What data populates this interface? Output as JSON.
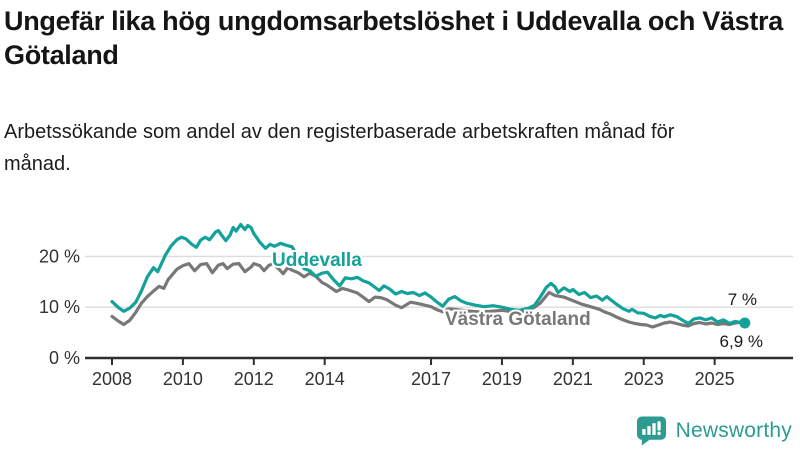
{
  "header": {
    "title": "Ungefär lika hög ungdomsarbetslöshet i Uddevalla och Västra Götaland",
    "subtitle": "Arbetssökande som andel av den registerbaserade arbetskraften månad för månad."
  },
  "footer": {
    "brand": "Newsworthy",
    "brand_color": "#2d9b91"
  },
  "chart_data": {
    "type": "line",
    "title": "Ungefär lika hög ungdomsarbetslöshet i Uddevalla och Västra Götaland",
    "subtitle": "Arbetssökande som andel av den registerbaserade arbetskraften månad för månad.",
    "unit": "%",
    "grid": true,
    "legend_position": "inline-labels",
    "colors": {
      "axis": "#2e2e2e",
      "gridline": "#dcdcdc",
      "tick_text": "#333333",
      "end_label_text": "#1a1a1a"
    },
    "x_axis": {
      "range": [
        2007.7,
        2026.2
      ],
      "ticks": [
        2008,
        2010,
        2012,
        2014,
        2017,
        2019,
        2021,
        2023,
        2025
      ]
    },
    "y_axis": {
      "range": [
        0,
        28
      ],
      "ticks": [
        {
          "value": 0,
          "label": "0 %"
        },
        {
          "value": 10,
          "label": "10 %"
        },
        {
          "value": 20,
          "label": "20 %"
        }
      ]
    },
    "series": [
      {
        "name": "Uddevalla",
        "color": "#12a29a",
        "end_label": "6,9 %",
        "end_value": 6.9,
        "points": [
          [
            2008.0,
            11.1
          ],
          [
            2008.17,
            10.0
          ],
          [
            2008.33,
            9.2
          ],
          [
            2008.5,
            9.8
          ],
          [
            2008.67,
            11.0
          ],
          [
            2008.83,
            13.2
          ],
          [
            2009.0,
            16.0
          ],
          [
            2009.17,
            17.8
          ],
          [
            2009.29,
            17.0
          ],
          [
            2009.5,
            20.2
          ],
          [
            2009.67,
            22.1
          ],
          [
            2009.83,
            23.3
          ],
          [
            2009.96,
            23.8
          ],
          [
            2010.08,
            23.5
          ],
          [
            2010.25,
            22.4
          ],
          [
            2010.38,
            21.8
          ],
          [
            2010.5,
            23.2
          ],
          [
            2010.63,
            23.8
          ],
          [
            2010.75,
            23.3
          ],
          [
            2010.92,
            24.8
          ],
          [
            2011.0,
            25.1
          ],
          [
            2011.08,
            24.3
          ],
          [
            2011.21,
            23.1
          ],
          [
            2011.33,
            24.2
          ],
          [
            2011.42,
            25.7
          ],
          [
            2011.5,
            25.0
          ],
          [
            2011.63,
            26.3
          ],
          [
            2011.75,
            25.3
          ],
          [
            2011.83,
            26.1
          ],
          [
            2011.92,
            25.7
          ],
          [
            2012.0,
            24.5
          ],
          [
            2012.17,
            22.8
          ],
          [
            2012.33,
            21.6
          ],
          [
            2012.46,
            22.4
          ],
          [
            2012.58,
            22.0
          ],
          [
            2012.75,
            22.6
          ],
          [
            2012.92,
            22.2
          ],
          [
            2013.08,
            21.9
          ],
          [
            2013.25,
            19.8
          ],
          [
            2013.42,
            17.6
          ],
          [
            2013.58,
            17.2
          ],
          [
            2013.75,
            16.1
          ],
          [
            2013.92,
            16.7
          ],
          [
            2014.08,
            16.9
          ],
          [
            2014.25,
            15.4
          ],
          [
            2014.42,
            14.2
          ],
          [
            2014.58,
            15.8
          ],
          [
            2014.75,
            15.6
          ],
          [
            2014.92,
            15.9
          ],
          [
            2015.08,
            15.2
          ],
          [
            2015.25,
            14.8
          ],
          [
            2015.42,
            13.9
          ],
          [
            2015.54,
            13.3
          ],
          [
            2015.67,
            14.2
          ],
          [
            2015.83,
            13.6
          ],
          [
            2016.0,
            12.6
          ],
          [
            2016.17,
            13.1
          ],
          [
            2016.33,
            12.7
          ],
          [
            2016.5,
            12.9
          ],
          [
            2016.67,
            12.3
          ],
          [
            2016.83,
            12.8
          ],
          [
            2017.0,
            12.0
          ],
          [
            2017.17,
            11.0
          ],
          [
            2017.33,
            10.2
          ],
          [
            2017.5,
            11.6
          ],
          [
            2017.67,
            12.1
          ],
          [
            2017.83,
            11.3
          ],
          [
            2018.0,
            10.8
          ],
          [
            2018.25,
            10.4
          ],
          [
            2018.5,
            10.1
          ],
          [
            2018.75,
            10.3
          ],
          [
            2019.0,
            10.0
          ],
          [
            2019.25,
            9.6
          ],
          [
            2019.5,
            9.4
          ],
          [
            2019.75,
            9.8
          ],
          [
            2019.92,
            10.4
          ],
          [
            2020.08,
            12.0
          ],
          [
            2020.25,
            13.9
          ],
          [
            2020.38,
            14.7
          ],
          [
            2020.5,
            14.0
          ],
          [
            2020.58,
            12.9
          ],
          [
            2020.75,
            13.8
          ],
          [
            2020.92,
            13.1
          ],
          [
            2021.0,
            13.5
          ],
          [
            2021.17,
            12.5
          ],
          [
            2021.33,
            12.9
          ],
          [
            2021.5,
            11.9
          ],
          [
            2021.67,
            12.2
          ],
          [
            2021.83,
            11.4
          ],
          [
            2021.96,
            12.1
          ],
          [
            2022.08,
            11.4
          ],
          [
            2022.25,
            10.5
          ],
          [
            2022.42,
            9.7
          ],
          [
            2022.58,
            9.2
          ],
          [
            2022.67,
            9.6
          ],
          [
            2022.83,
            8.9
          ],
          [
            2023.0,
            8.8
          ],
          [
            2023.17,
            8.2
          ],
          [
            2023.33,
            7.9
          ],
          [
            2023.46,
            8.4
          ],
          [
            2023.58,
            8.1
          ],
          [
            2023.75,
            8.5
          ],
          [
            2023.92,
            8.2
          ],
          [
            2024.08,
            7.5
          ],
          [
            2024.25,
            6.8
          ],
          [
            2024.42,
            7.7
          ],
          [
            2024.58,
            7.9
          ],
          [
            2024.75,
            7.5
          ],
          [
            2024.92,
            7.9
          ],
          [
            2025.08,
            7.1
          ],
          [
            2025.25,
            7.5
          ],
          [
            2025.42,
            6.8
          ],
          [
            2025.58,
            7.2
          ],
          [
            2025.75,
            7.0
          ],
          [
            2025.85,
            6.9
          ]
        ]
      },
      {
        "name": "Västra Götaland",
        "color": "#787878",
        "end_label": "7 %",
        "end_value": 7.0,
        "points": [
          [
            2008.0,
            8.2
          ],
          [
            2008.17,
            7.3
          ],
          [
            2008.33,
            6.6
          ],
          [
            2008.5,
            7.4
          ],
          [
            2008.67,
            9.0
          ],
          [
            2008.83,
            10.8
          ],
          [
            2009.0,
            12.1
          ],
          [
            2009.17,
            13.2
          ],
          [
            2009.33,
            14.1
          ],
          [
            2009.46,
            13.7
          ],
          [
            2009.58,
            15.4
          ],
          [
            2009.83,
            17.5
          ],
          [
            2010.0,
            18.2
          ],
          [
            2010.17,
            18.6
          ],
          [
            2010.33,
            17.2
          ],
          [
            2010.5,
            18.4
          ],
          [
            2010.67,
            18.6
          ],
          [
            2010.83,
            16.8
          ],
          [
            2011.0,
            18.3
          ],
          [
            2011.13,
            18.6
          ],
          [
            2011.25,
            17.6
          ],
          [
            2011.42,
            18.5
          ],
          [
            2011.58,
            18.6
          ],
          [
            2011.75,
            17.0
          ],
          [
            2011.92,
            17.9
          ],
          [
            2012.0,
            18.6
          ],
          [
            2012.17,
            18.2
          ],
          [
            2012.29,
            17.2
          ],
          [
            2012.42,
            18.2
          ],
          [
            2012.54,
            18.6
          ],
          [
            2012.71,
            17.5
          ],
          [
            2012.83,
            16.6
          ],
          [
            2012.96,
            17.8
          ],
          [
            2013.08,
            17.3
          ],
          [
            2013.25,
            16.8
          ],
          [
            2013.42,
            16.0
          ],
          [
            2013.58,
            16.7
          ],
          [
            2013.75,
            16.1
          ],
          [
            2013.92,
            14.9
          ],
          [
            2014.08,
            14.3
          ],
          [
            2014.33,
            13.1
          ],
          [
            2014.5,
            13.7
          ],
          [
            2014.67,
            13.4
          ],
          [
            2014.92,
            12.8
          ],
          [
            2015.08,
            12.0
          ],
          [
            2015.25,
            11.1
          ],
          [
            2015.42,
            12.0
          ],
          [
            2015.58,
            11.9
          ],
          [
            2015.75,
            11.5
          ],
          [
            2016.0,
            10.4
          ],
          [
            2016.17,
            9.9
          ],
          [
            2016.42,
            11.0
          ],
          [
            2016.58,
            10.8
          ],
          [
            2016.83,
            10.4
          ],
          [
            2017.0,
            10.1
          ],
          [
            2017.17,
            9.5
          ],
          [
            2017.33,
            9.1
          ],
          [
            2017.5,
            9.7
          ],
          [
            2017.67,
            9.6
          ],
          [
            2018.0,
            9.3
          ],
          [
            2018.33,
            9.1
          ],
          [
            2018.67,
            9.2
          ],
          [
            2019.0,
            9.4
          ],
          [
            2019.33,
            9.1
          ],
          [
            2019.58,
            9.2
          ],
          [
            2019.83,
            9.6
          ],
          [
            2020.08,
            10.8
          ],
          [
            2020.33,
            12.9
          ],
          [
            2020.5,
            12.3
          ],
          [
            2020.75,
            12.0
          ],
          [
            2021.0,
            11.3
          ],
          [
            2021.25,
            10.6
          ],
          [
            2021.5,
            10.1
          ],
          [
            2021.75,
            9.6
          ],
          [
            2021.92,
            9.0
          ],
          [
            2022.08,
            8.6
          ],
          [
            2022.25,
            8.0
          ],
          [
            2022.42,
            7.5
          ],
          [
            2022.58,
            7.1
          ],
          [
            2022.75,
            6.8
          ],
          [
            2022.92,
            6.6
          ],
          [
            2023.08,
            6.5
          ],
          [
            2023.25,
            6.1
          ],
          [
            2023.42,
            6.5
          ],
          [
            2023.58,
            6.9
          ],
          [
            2023.75,
            7.1
          ],
          [
            2023.92,
            6.8
          ],
          [
            2024.08,
            6.5
          ],
          [
            2024.25,
            6.3
          ],
          [
            2024.42,
            6.8
          ],
          [
            2024.58,
            7.0
          ],
          [
            2024.75,
            6.7
          ],
          [
            2024.92,
            6.9
          ],
          [
            2025.08,
            6.6
          ],
          [
            2025.25,
            6.8
          ],
          [
            2025.42,
            6.6
          ],
          [
            2025.58,
            6.9
          ],
          [
            2025.75,
            7.1
          ],
          [
            2025.83,
            7.0
          ]
        ]
      }
    ]
  }
}
